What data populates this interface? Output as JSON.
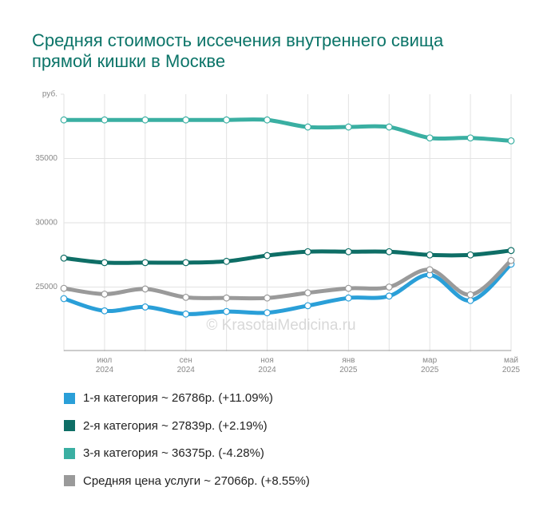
{
  "chart_data": {
    "type": "line",
    "title": "Средняя стоимость иссечения внутреннего свища прямой кишки в Москве",
    "watermark": "© KrasotaiMedicina.ru",
    "categories": [
      null,
      "июл 2024",
      null,
      "сен 2024",
      null,
      "ноя 2024",
      null,
      "янв 2025",
      null,
      "мар 2025",
      null,
      "май 2025"
    ],
    "ylim": [
      20000,
      40000
    ],
    "yticks": [
      25000,
      30000,
      35000,
      {
        "value": 40000,
        "label": "руб."
      }
    ],
    "grid": true,
    "series": [
      {
        "name": "1-я категория ~ 26786р. (+11.09%)",
        "color": "#2a9fd8",
        "values": [
          24100,
          23150,
          23450,
          22900,
          23100,
          23000,
          23550,
          24150,
          24300,
          25950,
          23950,
          26786
        ]
      },
      {
        "name": "2-я категория ~ 27839р. (+2.19%)",
        "color": "#0e6e66",
        "values": [
          27250,
          26900,
          26900,
          26900,
          27000,
          27450,
          27750,
          27750,
          27750,
          27500,
          27500,
          27839
        ]
      },
      {
        "name": "3-я категория ~ 36375р. (-4.28%)",
        "color": "#3aafa2",
        "values": [
          38000,
          38000,
          38000,
          38000,
          38000,
          38000,
          37450,
          37450,
          37450,
          36600,
          36600,
          36375
        ]
      },
      {
        "name": "Средняя цена услуги ~ 27066р. (+8.55%)",
        "color": "#9a9a9a",
        "values": [
          24900,
          24450,
          24850,
          24200,
          24150,
          24150,
          24550,
          24900,
          25000,
          26350,
          24400,
          27066
        ]
      }
    ]
  }
}
